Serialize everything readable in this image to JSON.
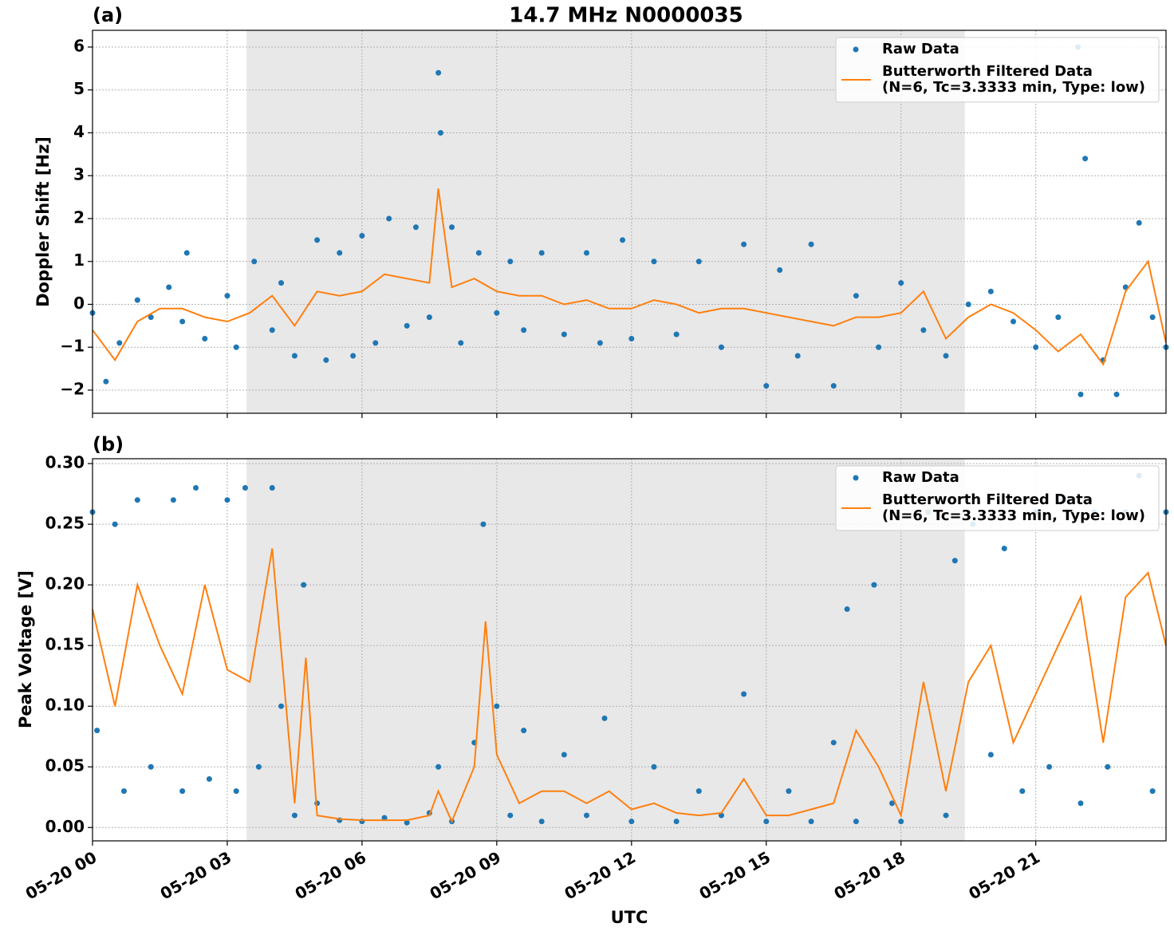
{
  "chart_data": [
    {
      "type": "scatter-line",
      "title": "14.7 MHz N0000035",
      "panel_label": "(a)",
      "ylabel": "Doppler Shift [Hz]",
      "xlim": [
        0,
        23.9
      ],
      "ylim": [
        -2.54,
        6.39
      ],
      "xticks": [
        0,
        3,
        6,
        9,
        12,
        15,
        18,
        21
      ],
      "yticks": [
        {
          "value": -2,
          "label": "−2"
        },
        {
          "value": -1,
          "label": "−1"
        },
        0,
        1,
        2,
        3,
        4,
        5,
        6
      ],
      "grid": true,
      "legend": "upper right",
      "shaded_span": [
        3.43,
        19.42
      ],
      "series": [
        {
          "name": "Raw Data",
          "color": "#1f77b4",
          "style": "points",
          "x": [
            0,
            0.3,
            0.6,
            1,
            1.3,
            1.7,
            2,
            2.1,
            2.5,
            3,
            3.2,
            3.6,
            4,
            4.2,
            4.5,
            5,
            5.2,
            5.5,
            5.8,
            6,
            6.3,
            6.6,
            7,
            7.2,
            7.5,
            7.7,
            7.75,
            8,
            8.2,
            8.6,
            9,
            9.3,
            9.6,
            10,
            10.5,
            11,
            11.3,
            11.8,
            12,
            12.5,
            13,
            13.5,
            14,
            14.5,
            15,
            15.3,
            15.7,
            16,
            16.5,
            17,
            17.5,
            18,
            18.5,
            19,
            19.5,
            20,
            20.5,
            21,
            21.5,
            21.94,
            22,
            22.1,
            22.5,
            22.8,
            23,
            23.3,
            23.6,
            23.9
          ],
          "values": [
            -0.2,
            -1.8,
            -0.9,
            0.1,
            -0.3,
            0.4,
            -0.4,
            1.2,
            -0.8,
            0.2,
            -1.0,
            1.0,
            -0.6,
            0.5,
            -1.2,
            1.5,
            -1.3,
            1.2,
            -1.2,
            1.6,
            -0.9,
            2.0,
            -0.5,
            1.8,
            -0.3,
            5.4,
            4.0,
            1.8,
            -0.9,
            1.2,
            -0.2,
            1.0,
            -0.6,
            1.2,
            -0.7,
            1.2,
            -0.9,
            1.5,
            -0.8,
            1.0,
            -0.7,
            1.0,
            -1.0,
            1.4,
            -1.9,
            0.8,
            -1.2,
            1.4,
            -1.9,
            0.2,
            -1.0,
            0.5,
            -0.6,
            -1.2,
            0.0,
            0.3,
            -0.4,
            -1.0,
            -0.3,
            6.0,
            -2.1,
            3.4,
            -1.3,
            -2.1,
            0.4,
            1.9,
            -0.3,
            -1.0
          ]
        },
        {
          "name": "Butterworth Filtered Data\n(N=6, Tc=3.3333 min, Type: low)",
          "color": "#ff7f0e",
          "style": "line",
          "x": [
            0,
            0.5,
            1,
            1.5,
            2,
            2.5,
            3,
            3.5,
            4,
            4.5,
            5,
            5.5,
            6,
            6.5,
            7,
            7.5,
            7.7,
            8,
            8.5,
            9,
            9.5,
            10,
            10.5,
            11,
            11.5,
            12,
            12.5,
            13,
            13.5,
            14,
            14.5,
            15,
            15.5,
            16,
            16.5,
            17,
            17.5,
            18,
            18.5,
            19,
            19.5,
            20,
            20.5,
            21,
            21.5,
            22,
            22.5,
            23,
            23.5,
            23.9
          ],
          "values": [
            -0.6,
            -1.3,
            -0.4,
            -0.1,
            -0.1,
            -0.3,
            -0.4,
            -0.2,
            0.2,
            -0.5,
            0.3,
            0.2,
            0.3,
            0.7,
            0.6,
            0.5,
            2.7,
            0.4,
            0.6,
            0.3,
            0.2,
            0.2,
            0,
            0.1,
            -0.1,
            -0.1,
            0.1,
            0,
            -0.2,
            -0.1,
            -0.1,
            -0.2,
            -0.3,
            -0.4,
            -0.5,
            -0.3,
            -0.3,
            -0.2,
            0.3,
            -0.8,
            -0.3,
            0,
            -0.2,
            -0.6,
            -1.1,
            -0.7,
            -1.4,
            0.3,
            1.0,
            -0.9
          ]
        }
      ]
    },
    {
      "type": "scatter-line",
      "panel_label": "(b)",
      "ylabel": "Peak Voltage [V]",
      "xlabel": "UTC",
      "xlim": [
        0,
        23.9
      ],
      "ylim": [
        -0.011,
        0.304
      ],
      "xticks": [
        {
          "value": 0,
          "label": "05-20 00"
        },
        {
          "value": 3,
          "label": "05-20 03"
        },
        {
          "value": 6,
          "label": "05-20 06"
        },
        {
          "value": 9,
          "label": "05-20 09"
        },
        {
          "value": 12,
          "label": "05-20 12"
        },
        {
          "value": 15,
          "label": "05-20 15"
        },
        {
          "value": 18,
          "label": "05-20 18"
        },
        {
          "value": 21,
          "label": "05-20 21"
        }
      ],
      "yticks": [
        {
          "value": 0,
          "label": "0.00"
        },
        0.05,
        {
          "value": 0.1,
          "label": "0.10"
        },
        0.15,
        {
          "value": 0.2,
          "label": "0.20"
        },
        0.25,
        {
          "value": 0.3,
          "label": "0.30"
        }
      ],
      "grid": true,
      "legend": "upper right",
      "shaded_span": [
        3.43,
        19.42
      ],
      "series": [
        {
          "name": "Raw Data",
          "color": "#1f77b4",
          "style": "points",
          "x": [
            0,
            0.1,
            0.5,
            0.7,
            1,
            1.3,
            1.8,
            2,
            2.3,
            2.6,
            3,
            3.2,
            3.4,
            3.7,
            4,
            4.2,
            4.5,
            4.7,
            5,
            5.5,
            6,
            6.5,
            7,
            7.5,
            7.7,
            8,
            8.5,
            8.7,
            9,
            9.3,
            9.6,
            10,
            10.5,
            11,
            11.4,
            12,
            12.5,
            13,
            13.5,
            14,
            14.5,
            15,
            15.5,
            16,
            16.5,
            16.8,
            17,
            17.4,
            17.8,
            18,
            18.6,
            19,
            19.2,
            19.6,
            20,
            20.3,
            20.7,
            21,
            21.3,
            21.6,
            22,
            22.3,
            22.6,
            23,
            23.3,
            23.6,
            23.9
          ],
          "values": [
            0.26,
            0.08,
            0.25,
            0.03,
            0.27,
            0.05,
            0.27,
            0.03,
            0.28,
            0.04,
            0.27,
            0.03,
            0.28,
            0.05,
            0.28,
            0.1,
            0.01,
            0.2,
            0.02,
            0.006,
            0.005,
            0.008,
            0.004,
            0.012,
            0.05,
            0.005,
            0.07,
            0.25,
            0.1,
            0.01,
            0.08,
            0.005,
            0.06,
            0.01,
            0.09,
            0.005,
            0.05,
            0.005,
            0.03,
            0.01,
            0.11,
            0.005,
            0.03,
            0.005,
            0.07,
            0.18,
            0.005,
            0.2,
            0.02,
            0.005,
            0.26,
            0.01,
            0.22,
            0.25,
            0.06,
            0.23,
            0.03,
            0.26,
            0.05,
            0.27,
            0.02,
            0.26,
            0.05,
            0.26,
            0.29,
            0.03,
            0.26
          ]
        },
        {
          "name": "Butterworth Filtered Data\n(N=6, Tc=3.3333 min, Type: low)",
          "color": "#ff7f0e",
          "style": "line",
          "x": [
            0,
            0.5,
            1,
            1.5,
            2,
            2.5,
            3,
            3.5,
            4,
            4.5,
            4.75,
            5,
            5.5,
            6,
            6.5,
            7,
            7.5,
            7.7,
            8,
            8.5,
            8.75,
            9,
            9.5,
            10,
            10.5,
            11,
            11.5,
            12,
            12.5,
            13,
            13.5,
            14,
            14.5,
            15,
            15.5,
            16,
            16.5,
            17,
            17.5,
            18,
            18.5,
            19,
            19.5,
            20,
            20.5,
            21,
            21.5,
            22,
            22.5,
            23,
            23.5,
            23.9
          ],
          "values": [
            0.18,
            0.1,
            0.2,
            0.15,
            0.11,
            0.2,
            0.13,
            0.12,
            0.23,
            0.02,
            0.14,
            0.01,
            0.007,
            0.006,
            0.006,
            0.006,
            0.01,
            0.03,
            0.005,
            0.05,
            0.17,
            0.06,
            0.02,
            0.03,
            0.03,
            0.02,
            0.03,
            0.015,
            0.02,
            0.012,
            0.01,
            0.012,
            0.04,
            0.01,
            0.01,
            0.015,
            0.02,
            0.08,
            0.05,
            0.01,
            0.12,
            0.03,
            0.12,
            0.15,
            0.07,
            0.11,
            0.15,
            0.19,
            0.07,
            0.19,
            0.21,
            0.15
          ]
        }
      ]
    }
  ]
}
